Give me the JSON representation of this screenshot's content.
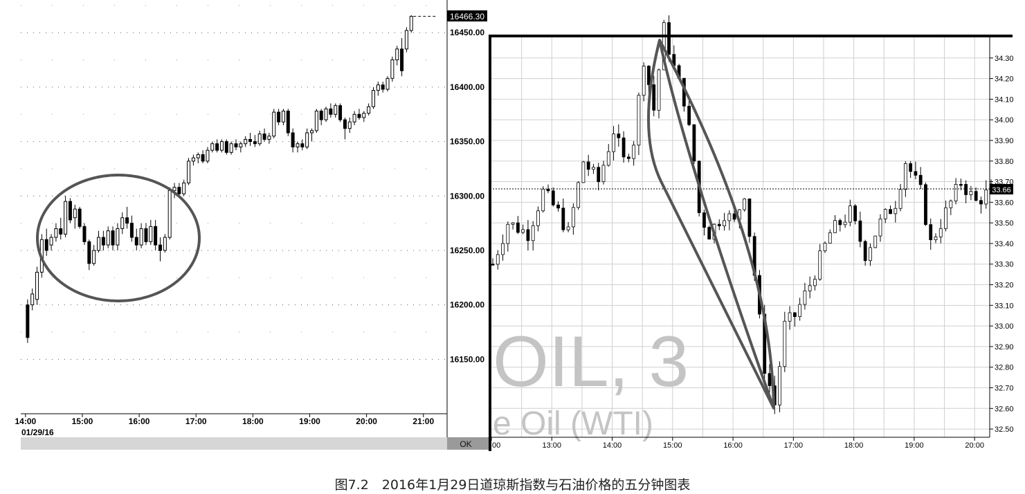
{
  "caption": "图7.2　2016年1月29日道琼斯指数与石油价格的五分钟图表",
  "chart_data": [
    {
      "type": "candlestick",
      "title": "",
      "last_price_label": "16466.30",
      "y_ticks": [
        "16150.00",
        "16200.00",
        "16250.00",
        "16300.00",
        "16350.00",
        "16400.00",
        "16450.00"
      ],
      "ylim": [
        16100,
        16480
      ],
      "x_ticks": [
        "14:00",
        "15:00",
        "16:00",
        "17:00",
        "18:00",
        "19:00",
        "20:00",
        "21:00"
      ],
      "x_range": [
        "13:55",
        "21:25"
      ],
      "date_label": "01/29/16",
      "grid": true,
      "annotation": "ellipse around 14:05–17:00 consolidation",
      "bars": [
        {
          "x": "14:00",
          "o": 16200,
          "h": 16205,
          "l": 16165,
          "c": 16170
        },
        {
          "x": "14:05",
          "o": 16200,
          "h": 16215,
          "l": 16195,
          "c": 16210
        },
        {
          "x": "14:10",
          "o": 16205,
          "h": 16235,
          "l": 16200,
          "c": 16230
        },
        {
          "x": "14:15",
          "o": 16230,
          "h": 16265,
          "l": 16225,
          "c": 16260
        },
        {
          "x": "14:20",
          "o": 16260,
          "h": 16270,
          "l": 16245,
          "c": 16250
        },
        {
          "x": "14:25",
          "o": 16255,
          "h": 16265,
          "l": 16250,
          "c": 16262
        },
        {
          "x": "14:30",
          "o": 16262,
          "h": 16275,
          "l": 16258,
          "c": 16270
        },
        {
          "x": "14:35",
          "o": 16270,
          "h": 16280,
          "l": 16260,
          "c": 16265
        },
        {
          "x": "14:40",
          "o": 16265,
          "h": 16300,
          "l": 16262,
          "c": 16295
        },
        {
          "x": "14:45",
          "o": 16295,
          "h": 16298,
          "l": 16275,
          "c": 16278
        },
        {
          "x": "14:50",
          "o": 16280,
          "h": 16292,
          "l": 16270,
          "c": 16288
        },
        {
          "x": "14:55",
          "o": 16288,
          "h": 16290,
          "l": 16270,
          "c": 16272
        },
        {
          "x": "15:00",
          "o": 16272,
          "h": 16275,
          "l": 16255,
          "c": 16258
        },
        {
          "x": "15:05",
          "o": 16258,
          "h": 16260,
          "l": 16232,
          "c": 16238
        },
        {
          "x": "15:10",
          "o": 16238,
          "h": 16255,
          "l": 16236,
          "c": 16250
        },
        {
          "x": "15:15",
          "o": 16250,
          "h": 16268,
          "l": 16248,
          "c": 16262
        },
        {
          "x": "15:20",
          "o": 16262,
          "h": 16268,
          "l": 16250,
          "c": 16255
        },
        {
          "x": "15:25",
          "o": 16255,
          "h": 16272,
          "l": 16252,
          "c": 16268
        },
        {
          "x": "15:30",
          "o": 16268,
          "h": 16272,
          "l": 16250,
          "c": 16255
        },
        {
          "x": "15:35",
          "o": 16255,
          "h": 16275,
          "l": 16250,
          "c": 16270
        },
        {
          "x": "15:40",
          "o": 16270,
          "h": 16285,
          "l": 16265,
          "c": 16280
        },
        {
          "x": "15:45",
          "o": 16280,
          "h": 16290,
          "l": 16270,
          "c": 16275
        },
        {
          "x": "15:50",
          "o": 16275,
          "h": 16282,
          "l": 16258,
          "c": 16262
        },
        {
          "x": "15:55",
          "o": 16262,
          "h": 16270,
          "l": 16250,
          "c": 16255
        },
        {
          "x": "16:00",
          "o": 16255,
          "h": 16275,
          "l": 16252,
          "c": 16270
        },
        {
          "x": "16:05",
          "o": 16270,
          "h": 16275,
          "l": 16255,
          "c": 16258
        },
        {
          "x": "16:10",
          "o": 16258,
          "h": 16278,
          "l": 16255,
          "c": 16272
        },
        {
          "x": "16:15",
          "o": 16272,
          "h": 16278,
          "l": 16250,
          "c": 16255
        },
        {
          "x": "16:20",
          "o": 16255,
          "h": 16262,
          "l": 16240,
          "c": 16250
        },
        {
          "x": "16:25",
          "o": 16250,
          "h": 16265,
          "l": 16248,
          "c": 16262
        },
        {
          "x": "16:30",
          "o": 16262,
          "h": 16308,
          "l": 16260,
          "c": 16305
        },
        {
          "x": "16:35",
          "o": 16305,
          "h": 16312,
          "l": 16298,
          "c": 16308
        },
        {
          "x": "16:40",
          "o": 16308,
          "h": 16312,
          "l": 16300,
          "c": 16302
        },
        {
          "x": "16:45",
          "o": 16302,
          "h": 16315,
          "l": 16300,
          "c": 16312
        },
        {
          "x": "16:50",
          "o": 16312,
          "h": 16335,
          "l": 16310,
          "c": 16332
        },
        {
          "x": "16:55",
          "o": 16332,
          "h": 16338,
          "l": 16328,
          "c": 16335
        },
        {
          "x": "17:00",
          "o": 16335,
          "h": 16340,
          "l": 16330,
          "c": 16338
        },
        {
          "x": "17:05",
          "o": 16338,
          "h": 16342,
          "l": 16330,
          "c": 16332
        },
        {
          "x": "17:10",
          "o": 16332,
          "h": 16345,
          "l": 16330,
          "c": 16342
        },
        {
          "x": "17:15",
          "o": 16342,
          "h": 16350,
          "l": 16340,
          "c": 16348
        },
        {
          "x": "17:20",
          "o": 16348,
          "h": 16352,
          "l": 16340,
          "c": 16342
        },
        {
          "x": "17:25",
          "o": 16342,
          "h": 16352,
          "l": 16340,
          "c": 16350
        },
        {
          "x": "17:30",
          "o": 16350,
          "h": 16352,
          "l": 16338,
          "c": 16340
        },
        {
          "x": "17:35",
          "o": 16340,
          "h": 16350,
          "l": 16338,
          "c": 16348
        },
        {
          "x": "17:40",
          "o": 16348,
          "h": 16352,
          "l": 16342,
          "c": 16345
        },
        {
          "x": "17:45",
          "o": 16345,
          "h": 16350,
          "l": 16340,
          "c": 16348
        },
        {
          "x": "17:50",
          "o": 16348,
          "h": 16355,
          "l": 16345,
          "c": 16352
        },
        {
          "x": "17:55",
          "o": 16352,
          "h": 16358,
          "l": 16346,
          "c": 16350
        },
        {
          "x": "18:00",
          "o": 16350,
          "h": 16356,
          "l": 16345,
          "c": 16348
        },
        {
          "x": "18:05",
          "o": 16348,
          "h": 16360,
          "l": 16346,
          "c": 16357
        },
        {
          "x": "18:10",
          "o": 16357,
          "h": 16362,
          "l": 16350,
          "c": 16352
        },
        {
          "x": "18:15",
          "o": 16352,
          "h": 16358,
          "l": 16348,
          "c": 16355
        },
        {
          "x": "18:20",
          "o": 16355,
          "h": 16380,
          "l": 16353,
          "c": 16377
        },
        {
          "x": "18:25",
          "o": 16377,
          "h": 16380,
          "l": 16365,
          "c": 16368
        },
        {
          "x": "18:30",
          "o": 16368,
          "h": 16380,
          "l": 16365,
          "c": 16378
        },
        {
          "x": "18:35",
          "o": 16378,
          "h": 16380,
          "l": 16355,
          "c": 16358
        },
        {
          "x": "18:40",
          "o": 16358,
          "h": 16362,
          "l": 16340,
          "c": 16345
        },
        {
          "x": "18:45",
          "o": 16345,
          "h": 16350,
          "l": 16340,
          "c": 16348
        },
        {
          "x": "18:50",
          "o": 16348,
          "h": 16352,
          "l": 16342,
          "c": 16345
        },
        {
          "x": "18:55",
          "o": 16345,
          "h": 16362,
          "l": 16343,
          "c": 16358
        },
        {
          "x": "19:00",
          "o": 16358,
          "h": 16362,
          "l": 16350,
          "c": 16360
        },
        {
          "x": "19:05",
          "o": 16360,
          "h": 16380,
          "l": 16358,
          "c": 16378
        },
        {
          "x": "19:10",
          "o": 16378,
          "h": 16380,
          "l": 16365,
          "c": 16370
        },
        {
          "x": "19:15",
          "o": 16370,
          "h": 16382,
          "l": 16368,
          "c": 16380
        },
        {
          "x": "19:20",
          "o": 16380,
          "h": 16385,
          "l": 16372,
          "c": 16375
        },
        {
          "x": "19:25",
          "o": 16375,
          "h": 16385,
          "l": 16372,
          "c": 16383
        },
        {
          "x": "19:30",
          "o": 16383,
          "h": 16385,
          "l": 16368,
          "c": 16370
        },
        {
          "x": "19:35",
          "o": 16370,
          "h": 16372,
          "l": 16352,
          "c": 16362
        },
        {
          "x": "19:40",
          "o": 16362,
          "h": 16372,
          "l": 16358,
          "c": 16368
        },
        {
          "x": "19:45",
          "o": 16368,
          "h": 16378,
          "l": 16365,
          "c": 16375
        },
        {
          "x": "19:50",
          "o": 16375,
          "h": 16380,
          "l": 16370,
          "c": 16372
        },
        {
          "x": "19:55",
          "o": 16372,
          "h": 16378,
          "l": 16368,
          "c": 16376
        },
        {
          "x": "20:00",
          "o": 16376,
          "h": 16385,
          "l": 16374,
          "c": 16382
        },
        {
          "x": "20:05",
          "o": 16382,
          "h": 16400,
          "l": 16380,
          "c": 16397
        },
        {
          "x": "20:10",
          "o": 16397,
          "h": 16405,
          "l": 16392,
          "c": 16402
        },
        {
          "x": "20:15",
          "o": 16402,
          "h": 16405,
          "l": 16395,
          "c": 16398
        },
        {
          "x": "20:20",
          "o": 16398,
          "h": 16410,
          "l": 16396,
          "c": 16408
        },
        {
          "x": "20:25",
          "o": 16408,
          "h": 16428,
          "l": 16405,
          "c": 16425
        },
        {
          "x": "20:30",
          "o": 16425,
          "h": 16438,
          "l": 16420,
          "c": 16435
        },
        {
          "x": "20:35",
          "o": 16435,
          "h": 16445,
          "l": 16410,
          "c": 16415
        },
        {
          "x": "20:40",
          "o": 16435,
          "h": 16455,
          "l": 16432,
          "c": 16452
        },
        {
          "x": "20:45",
          "o": 16452,
          "h": 16466,
          "l": 16450,
          "c": 16465
        }
      ]
    },
    {
      "type": "candlestick",
      "title": "",
      "watermark_line1": "OIL, 3",
      "watermark_line2": "e Oil (WTI)",
      "current_price_label": "33.66",
      "y_ticks": [
        "32.50",
        "32.60",
        "32.70",
        "32.80",
        "32.90",
        "33.00",
        "33.10",
        "33.20",
        "33.30",
        "33.40",
        "33.50",
        "33.60",
        "33.70",
        "33.80",
        "33.90",
        "34.00",
        "34.10",
        "34.20",
        "34.30"
      ],
      "ylim": [
        32.46,
        34.4
      ],
      "x_ticks": [
        "00",
        "13:00",
        "14:00",
        "15:00",
        "16:00",
        "17:00",
        "18:00",
        "19:00",
        "20:00"
      ],
      "x_range": [
        "12:00",
        "20:15"
      ],
      "grid": true,
      "annotation": "curved triangle from 14:50 high (34.45) down to 16:40 low (32.60)",
      "ok_label": "OK",
      "waypoints": [
        {
          "x": "12:00",
          "y": 33.3
        },
        {
          "x": "12:15",
          "y": 33.5
        },
        {
          "x": "12:35",
          "y": 33.45
        },
        {
          "x": "12:50",
          "y": 33.65
        },
        {
          "x": "13:05",
          "y": 33.55
        },
        {
          "x": "13:15",
          "y": 33.45
        },
        {
          "x": "13:30",
          "y": 33.8
        },
        {
          "x": "13:45",
          "y": 33.7
        },
        {
          "x": "14:00",
          "y": 33.95
        },
        {
          "x": "14:10",
          "y": 33.8
        },
        {
          "x": "14:20",
          "y": 33.9
        },
        {
          "x": "14:30",
          "y": 34.3
        },
        {
          "x": "14:40",
          "y": 34.05
        },
        {
          "x": "14:50",
          "y": 34.44
        },
        {
          "x": "15:00",
          "y": 34.25
        },
        {
          "x": "15:10",
          "y": 34.1
        },
        {
          "x": "15:20",
          "y": 33.8
        },
        {
          "x": "15:25",
          "y": 33.55
        },
        {
          "x": "15:35",
          "y": 33.45
        },
        {
          "x": "15:50",
          "y": 33.55
        },
        {
          "x": "16:00",
          "y": 33.5
        },
        {
          "x": "16:10",
          "y": 33.65
        },
        {
          "x": "16:20",
          "y": 33.25
        },
        {
          "x": "16:30",
          "y": 32.8
        },
        {
          "x": "16:40",
          "y": 32.62
        },
        {
          "x": "16:50",
          "y": 33.0
        },
        {
          "x": "17:00",
          "y": 33.05
        },
        {
          "x": "17:15",
          "y": 33.2
        },
        {
          "x": "17:35",
          "y": 33.45
        },
        {
          "x": "17:55",
          "y": 33.55
        },
        {
          "x": "18:10",
          "y": 33.35
        },
        {
          "x": "18:25",
          "y": 33.5
        },
        {
          "x": "18:40",
          "y": 33.6
        },
        {
          "x": "18:50",
          "y": 33.8
        },
        {
          "x": "19:05",
          "y": 33.65
        },
        {
          "x": "19:15",
          "y": 33.4
        },
        {
          "x": "19:30",
          "y": 33.55
        },
        {
          "x": "19:45",
          "y": 33.7
        },
        {
          "x": "20:00",
          "y": 33.6
        },
        {
          "x": "20:15",
          "y": 33.66
        }
      ]
    }
  ]
}
